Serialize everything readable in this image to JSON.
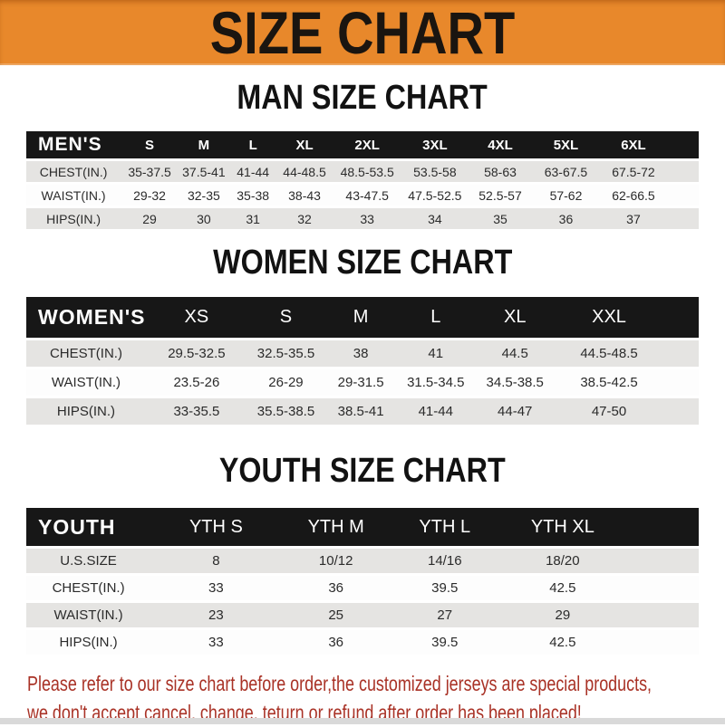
{
  "banner": {
    "title": "SIZE CHART"
  },
  "sections": [
    {
      "title": "MAN SIZE CHART",
      "header_label": "MEN'S",
      "columns": [
        "S",
        "M",
        "L",
        "XL",
        "2XL",
        "3XL",
        "4XL",
        "5XL",
        "6XL"
      ],
      "rows": [
        {
          "label": "CHEST(IN.)",
          "values": [
            "35-37.5",
            "37.5-41",
            "41-44",
            "44-48.5",
            "48.5-53.5",
            "53.5-58",
            "58-63",
            "63-67.5",
            "67.5-72"
          ]
        },
        {
          "label": "WAIST(IN.)",
          "values": [
            "29-32",
            "32-35",
            "35-38",
            "38-43",
            "43-47.5",
            "47.5-52.5",
            "52.5-57",
            "57-62",
            "62-66.5"
          ]
        },
        {
          "label": "HIPS(IN.)",
          "values": [
            "29",
            "30",
            "31",
            "32",
            "33",
            "34",
            "35",
            "36",
            "37"
          ]
        }
      ]
    },
    {
      "title": "WOMEN SIZE CHART",
      "header_label": "WOMEN'S",
      "columns": [
        "XS",
        "S",
        "M",
        "L",
        "XL",
        "XXL"
      ],
      "rows": [
        {
          "label": "CHEST(IN.)",
          "values": [
            "29.5-32.5",
            "32.5-35.5",
            "38",
            "41",
            "44.5",
            "44.5-48.5"
          ]
        },
        {
          "label": "WAIST(IN.)",
          "values": [
            "23.5-26",
            "26-29",
            "29-31.5",
            "31.5-34.5",
            "34.5-38.5",
            "38.5-42.5"
          ]
        },
        {
          "label": "HIPS(IN.)",
          "values": [
            "33-35.5",
            "35.5-38.5",
            "38.5-41",
            "41-44",
            "44-47",
            "47-50"
          ]
        }
      ]
    },
    {
      "title": "YOUTH SIZE CHART",
      "header_label": "YOUTH",
      "columns": [
        "YTH S",
        "YTH M",
        "YTH L",
        "YTH XL"
      ],
      "rows": [
        {
          "label": "U.S.SIZE",
          "values": [
            "8",
            "10/12",
            "14/16",
            "18/20"
          ]
        },
        {
          "label": "CHEST(IN.)",
          "values": [
            "33",
            "36",
            "39.5",
            "42.5"
          ]
        },
        {
          "label": "WAIST(IN.)",
          "values": [
            "23",
            "25",
            "27",
            "29"
          ]
        },
        {
          "label": "HIPS(IN.)",
          "values": [
            "33",
            "36",
            "39.5",
            "42.5"
          ]
        }
      ]
    }
  ],
  "footer": {
    "line1": "Please refer to our size chart before order,the customized jerseys are special products,",
    "line2": "we don't accept cancel, change, teturn or refund after order has been placed!"
  },
  "colors": {
    "banner_bg": "#E8882B",
    "banner_text": "#1A1510",
    "header_bar_bg": "#171717",
    "header_bar_text": "#FFFFFF",
    "row_stripe": "#E5E4E2",
    "row_white": "#FDFDFD",
    "table_text": "#2B2B2B",
    "footer_text": "#A93226",
    "bottom_strip": "#D9D9D9"
  }
}
